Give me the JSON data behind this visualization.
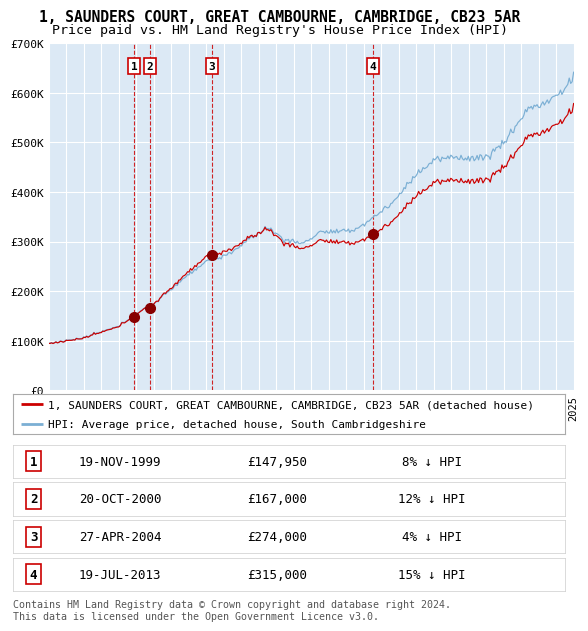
{
  "title": "1, SAUNDERS COURT, GREAT CAMBOURNE, CAMBRIDGE, CB23 5AR",
  "subtitle": "Price paid vs. HM Land Registry's House Price Index (HPI)",
  "x_start_year": 1995,
  "x_end_year": 2025,
  "y_min": 0,
  "y_max": 700000,
  "y_ticks": [
    0,
    100000,
    200000,
    300000,
    400000,
    500000,
    600000,
    700000
  ],
  "y_tick_labels": [
    "£0",
    "£100K",
    "£200K",
    "£300K",
    "£400K",
    "£500K",
    "£600K",
    "£700K"
  ],
  "background_color": "#ffffff",
  "plot_bg_color": "#dce9f5",
  "grid_color": "#ffffff",
  "hpi_line_color": "#7bafd4",
  "price_line_color": "#cc0000",
  "sale_marker_color": "#880000",
  "dashed_line_color": "#cc0000",
  "transactions": [
    {
      "num": 1,
      "date": "19-NOV-1999",
      "year": 1999.88,
      "price": 147950,
      "pct": "8%"
    },
    {
      "num": 2,
      "date": "20-OCT-2000",
      "year": 2000.8,
      "price": 167000,
      "pct": "12%"
    },
    {
      "num": 3,
      "date": "27-APR-2004",
      "year": 2004.32,
      "price": 274000,
      "pct": "4%"
    },
    {
      "num": 4,
      "date": "19-JUL-2013",
      "year": 2013.55,
      "price": 315000,
      "pct": "15%"
    }
  ],
  "legend_label_price": "1, SAUNDERS COURT, GREAT CAMBOURNE, CAMBRIDGE, CB23 5AR (detached house)",
  "legend_label_hpi": "HPI: Average price, detached house, South Cambridgeshire",
  "footer": "Contains HM Land Registry data © Crown copyright and database right 2024.\nThis data is licensed under the Open Government Licence v3.0.",
  "title_fontsize": 10.5,
  "subtitle_fontsize": 9.5,
  "axis_fontsize": 8,
  "legend_fontsize": 8,
  "table_fontsize": 9
}
